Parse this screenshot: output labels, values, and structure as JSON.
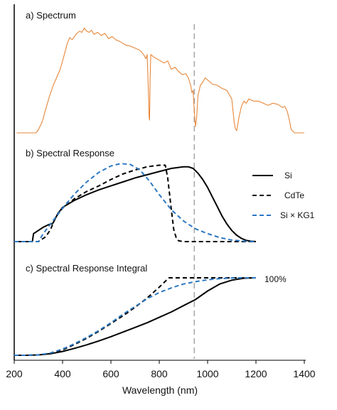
{
  "chart_data": [
    {
      "type": "line",
      "title": "a) Spectrum",
      "xlim": [
        200,
        1400
      ],
      "series": [
        {
          "color": "#e8873a",
          "x": [
            210,
            290,
            300,
            315,
            330,
            345,
            360,
            375,
            390,
            405,
            420,
            430,
            440,
            455,
            470,
            480,
            490,
            500,
            510,
            520,
            530,
            545,
            560,
            575,
            590,
            605,
            620,
            640,
            660,
            680,
            700,
            720,
            735,
            745,
            750,
            755,
            758,
            760,
            762,
            765,
            775,
            790,
            805,
            820,
            835,
            850,
            865,
            880,
            895,
            910,
            920,
            930,
            935,
            940,
            945,
            950,
            955,
            960,
            970,
            980,
            990,
            1000,
            1010,
            1020,
            1040,
            1060,
            1080,
            1100,
            1110,
            1115,
            1120,
            1125,
            1130,
            1140,
            1150,
            1160,
            1170,
            1190,
            1210,
            1230,
            1250,
            1270,
            1290,
            1310,
            1320,
            1330,
            1340,
            1345,
            1350,
            1355,
            1360,
            1400
          ],
          "y": [
            0,
            0,
            3,
            10,
            22,
            34,
            44,
            52,
            60,
            72,
            85,
            90,
            88,
            93,
            96,
            95,
            99,
            96,
            95,
            97,
            93,
            95,
            92,
            94,
            89,
            91,
            88,
            86,
            83,
            82,
            80,
            78,
            74,
            70,
            74,
            40,
            15,
            12,
            50,
            74,
            72,
            70,
            68,
            66,
            68,
            60,
            62,
            58,
            55,
            56,
            52,
            45,
            38,
            40,
            20,
            6,
            15,
            35,
            45,
            48,
            52,
            50,
            48,
            46,
            45,
            42,
            40,
            32,
            10,
            4,
            2,
            8,
            15,
            25,
            30,
            28,
            32,
            30,
            30,
            28,
            26,
            28,
            27,
            24,
            25,
            20,
            10,
            4,
            2,
            1,
            0,
            0
          ]
        }
      ],
      "ylim": [
        0,
        100
      ],
      "legend": "none",
      "grid": false
    },
    {
      "type": "line",
      "title": "b) Spectral Response",
      "xlim": [
        200,
        1400
      ],
      "ylim": [
        0,
        100
      ],
      "legend": "right",
      "grid": false,
      "series": [
        {
          "name": "Si",
          "color": "#000000",
          "dash": "solid",
          "x": [
            200,
            275,
            280,
            300,
            320,
            340,
            360,
            380,
            400,
            450,
            500,
            550,
            600,
            650,
            700,
            750,
            800,
            850,
            900,
            920,
            940,
            960,
            980,
            1000,
            1020,
            1040,
            1060,
            1080,
            1100,
            1120,
            1140,
            1160,
            1180,
            1200
          ],
          "y": [
            0,
            0,
            10,
            14,
            18,
            21,
            23,
            35,
            43,
            52,
            59,
            65,
            70,
            75,
            80,
            84,
            88,
            92,
            94,
            94,
            92,
            86,
            78,
            68,
            56,
            44,
            32,
            22,
            14,
            8,
            4,
            1.5,
            0.5,
            0
          ]
        },
        {
          "name": "CdTe",
          "color": "#000000",
          "dash": "dashed",
          "x": [
            200,
            300,
            330,
            350,
            370,
            400,
            450,
            500,
            550,
            600,
            650,
            700,
            750,
            800,
            825,
            835,
            850,
            860,
            870,
            880,
            900,
            1000,
            1100,
            1200
          ],
          "y": [
            0,
            0,
            6,
            15,
            30,
            42,
            54,
            63,
            70,
            78,
            85,
            90,
            94,
            96,
            96,
            80,
            40,
            15,
            5,
            1,
            0,
            0,
            0,
            0
          ]
        },
        {
          "name": "Si × KG1",
          "color": "#2b78c2",
          "dash": "dashed",
          "x": [
            200,
            300,
            320,
            340,
            360,
            380,
            400,
            450,
            500,
            550,
            600,
            640,
            680,
            720,
            760,
            800,
            850,
            900,
            950,
            1000,
            1050,
            1100,
            1150,
            1200
          ],
          "y": [
            0,
            0,
            10,
            18,
            26,
            34,
            42,
            60,
            75,
            87,
            95,
            98,
            97,
            90,
            76,
            59,
            40,
            26,
            16,
            10,
            5,
            2,
            0.5,
            0
          ]
        }
      ]
    },
    {
      "type": "line",
      "title": "c) Spectral Response Integral",
      "xlim": [
        200,
        1400
      ],
      "ylim": [
        0,
        100
      ],
      "legend": "none",
      "grid": false,
      "annotations": [
        "100%"
      ],
      "series": [
        {
          "name": "Si",
          "color": "#000000",
          "dash": "solid",
          "x": [
            200,
            250,
            300,
            350,
            400,
            450,
            500,
            550,
            600,
            650,
            700,
            750,
            800,
            850,
            900,
            950,
            1000,
            1050,
            1100,
            1150,
            1200
          ],
          "y": [
            0,
            0,
            0.5,
            2,
            5,
            9,
            13.5,
            18.5,
            24,
            30,
            36,
            42,
            49,
            56,
            64,
            72,
            83,
            92,
            97,
            99.5,
            100
          ]
        },
        {
          "name": "CdTe",
          "color": "#000000",
          "dash": "dashed",
          "x": [
            200,
            250,
            300,
            350,
            400,
            450,
            500,
            550,
            600,
            650,
            700,
            750,
            800,
            840,
            860,
            880,
            900,
            1000,
            1100,
            1200
          ],
          "y": [
            0,
            0,
            0.5,
            2,
            7,
            14,
            22,
            31,
            41,
            51,
            62,
            74,
            88,
            100,
            100,
            100,
            100,
            100,
            100,
            100
          ]
        },
        {
          "name": "Si × KG1",
          "color": "#2b78c2",
          "dash": "dashed",
          "x": [
            200,
            250,
            300,
            350,
            400,
            450,
            500,
            550,
            600,
            650,
            700,
            750,
            800,
            850,
            900,
            950,
            1000,
            1050,
            1100,
            1150,
            1200
          ],
          "y": [
            0,
            0,
            0.5,
            3,
            8,
            15,
            23,
            32,
            42,
            53,
            63,
            73,
            81,
            87,
            92,
            95,
            97.5,
            99,
            99.8,
            100,
            100
          ]
        }
      ]
    }
  ],
  "shared_x_axis": {
    "label": "Wavelength (nm)",
    "ticks": [
      200,
      400,
      600,
      800,
      1000,
      1200,
      1400
    ]
  },
  "reference_line": {
    "x": 945,
    "color": "#aaaaaa"
  }
}
